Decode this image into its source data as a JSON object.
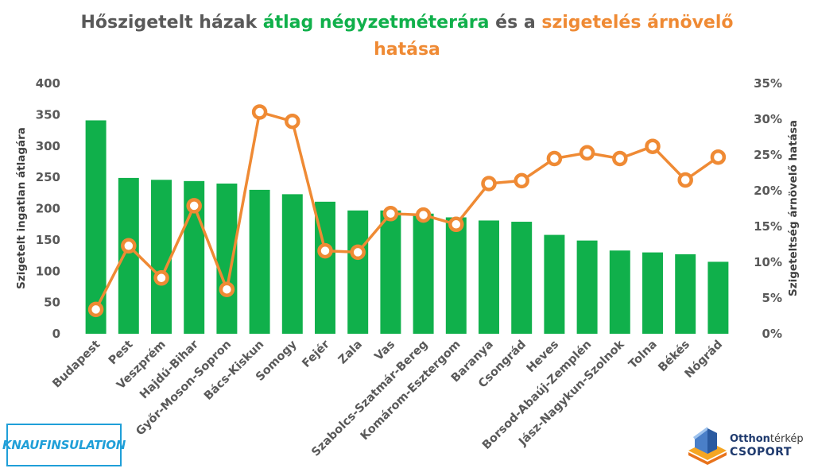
{
  "title": {
    "part1": "Hőszigetelt házak ",
    "part2": "átlag négyzetméterára",
    "part3": " és a ",
    "part4": "szigetelés árnövelő",
    "part5": "hatása"
  },
  "colors": {
    "bar": "#10b04b",
    "line": "#ef8a34",
    "marker_fill": "#ffffff",
    "text": "#595959"
  },
  "logos": {
    "knauf": "KNAUFINSULATION",
    "otthon_part1": "Otthon",
    "otthon_part2": "térkép",
    "otthon_sub": "CSOPORT"
  },
  "chart_data": {
    "type": "bar",
    "categories": [
      "Budapest",
      "Pest",
      "Veszprém",
      "Hajdú-Bihar",
      "Győr-Moson-Sopron",
      "Bács-Kiskun",
      "Somogy",
      "Fejér",
      "Zala",
      "Vas",
      "Szabolcs-Szatmár-Bereg",
      "Komárom-Esztergom",
      "Baranya",
      "Csongrád",
      "Heves",
      "Borsod-Abaúj-Zemplén",
      "Jász-Nagykun-Szolnok",
      "Tolna",
      "Békés",
      "Nógrád"
    ],
    "series": [
      {
        "type": "bar",
        "axis": "left",
        "values": [
          341,
          249,
          246,
          244,
          240,
          230,
          223,
          211,
          197,
          197,
          192,
          186,
          181,
          179,
          158,
          149,
          133,
          130,
          127,
          115
        ]
      },
      {
        "type": "line",
        "axis": "right",
        "values": [
          0.034,
          0.123,
          0.078,
          0.179,
          0.062,
          0.31,
          0.297,
          0.116,
          0.114,
          0.168,
          0.166,
          0.153,
          0.21,
          0.214,
          0.245,
          0.253,
          0.245,
          0.262,
          0.215,
          0.247
        ]
      }
    ],
    "left_axis": {
      "label": "Szigetelt ingatlan átlagára",
      "range": [
        0,
        400
      ],
      "ticks": [
        "0",
        "50",
        "100",
        "150",
        "200",
        "250",
        "300",
        "350",
        "400"
      ]
    },
    "right_axis": {
      "label": "Szigeteltség árnövelő hatása",
      "range": [
        0,
        0.35
      ],
      "ticks": [
        "0%",
        "5%",
        "10%",
        "15%",
        "20%",
        "25%",
        "30%",
        "35%"
      ]
    },
    "grid": false
  }
}
